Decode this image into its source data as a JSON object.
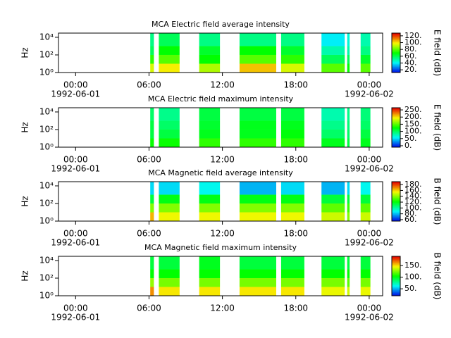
{
  "chart_data": [
    {
      "type": "heatmap",
      "title": "MCA  Electric field average intensity",
      "ylabel": "Hz",
      "colorbar_label": "E field (dB)",
      "colormap": "rainbow",
      "ylog": true,
      "xlim": [
        -1.4,
        25.1
      ],
      "xticks": [
        {
          "value": 0,
          "label": "00:00",
          "date": "1992-06-01"
        },
        {
          "value": 6,
          "label": "06:00"
        },
        {
          "value": 12,
          "label": "12:00"
        },
        {
          "value": 18,
          "label": "18:00"
        },
        {
          "value": 24,
          "label": "00:00",
          "date": "1992-06-02"
        }
      ],
      "ylim": [
        1,
        30000
      ],
      "yticks": [
        {
          "value": 1,
          "label": "10⁰"
        },
        {
          "value": 100,
          "label": "10²"
        },
        {
          "value": 10000,
          "label": "10⁴"
        }
      ],
      "clim": [
        12,
        128
      ],
      "cticks": [
        {
          "value": 20,
          "label": "20."
        },
        {
          "value": 40,
          "label": "40."
        },
        {
          "value": 60,
          "label": "60."
        },
        {
          "value": 80,
          "label": "80."
        },
        {
          "value": 100,
          "label": "100."
        },
        {
          "value": 120,
          "label": "120."
        }
      ],
      "segments": [
        [
          6.1,
          6.4
        ],
        [
          6.8,
          8.5
        ],
        [
          10.1,
          11.8
        ],
        [
          13.4,
          16.4
        ],
        [
          16.8,
          18.7
        ],
        [
          20.1,
          22.0
        ],
        [
          22.2,
          22.4
        ],
        [
          23.3,
          24.1
        ]
      ],
      "y_edges": [
        1,
        10,
        100,
        1000,
        30000
      ],
      "values": [
        [
          95,
          75,
          60,
          55
        ],
        [
          100,
          80,
          70,
          60
        ],
        [
          90,
          70,
          65,
          55
        ],
        [
          105,
          80,
          70,
          55
        ],
        [
          95,
          75,
          65,
          55
        ],
        [
          80,
          60,
          50,
          40
        ],
        [
          70,
          60,
          50,
          45
        ],
        [
          80,
          65,
          55,
          50
        ]
      ]
    },
    {
      "type": "heatmap",
      "title": "MCA  Electric field maximum intensity",
      "ylabel": "Hz",
      "colorbar_label": "E field (dB)",
      "colormap": "rainbow",
      "ylog": true,
      "xlim": [
        -1.4,
        25.1
      ],
      "xticks": [
        {
          "value": 0,
          "label": "00:00",
          "date": "1992-06-01"
        },
        {
          "value": 6,
          "label": "06:00"
        },
        {
          "value": 12,
          "label": "12:00"
        },
        {
          "value": 18,
          "label": "18:00"
        },
        {
          "value": 24,
          "label": "00:00",
          "date": "1992-06-02"
        }
      ],
      "ylim": [
        1,
        30000
      ],
      "yticks": [
        {
          "value": 1,
          "label": "10⁰"
        },
        {
          "value": 100,
          "label": "10²"
        },
        {
          "value": 10000,
          "label": "10⁴"
        }
      ],
      "clim": [
        -10,
        265
      ],
      "cticks": [
        {
          "value": 0,
          "label": "0."
        },
        {
          "value": 50,
          "label": "50."
        },
        {
          "value": 100,
          "label": "100."
        },
        {
          "value": 150,
          "label": "150."
        },
        {
          "value": 200,
          "label": "200."
        },
        {
          "value": 250,
          "label": "250."
        }
      ],
      "segments": [
        [
          6.1,
          6.4
        ],
        [
          6.8,
          8.5
        ],
        [
          10.1,
          11.8
        ],
        [
          13.4,
          16.4
        ],
        [
          16.8,
          18.7
        ],
        [
          20.1,
          22.0
        ],
        [
          22.2,
          22.4
        ],
        [
          23.3,
          24.1
        ]
      ],
      "y_edges": [
        1,
        10,
        100,
        1000,
        30000
      ],
      "values": [
        [
          130,
          110,
          110,
          100
        ],
        [
          130,
          110,
          100,
          90
        ],
        [
          140,
          120,
          115,
          110
        ],
        [
          140,
          120,
          120,
          110
        ],
        [
          140,
          125,
          120,
          110
        ],
        [
          120,
          100,
          90,
          80
        ],
        [
          110,
          100,
          95,
          90
        ],
        [
          120,
          110,
          100,
          95
        ]
      ]
    },
    {
      "type": "heatmap",
      "title": "MCA  Magnetic field average intensity",
      "ylabel": "Hz",
      "colorbar_label": "B field (dB)",
      "colormap": "rainbow",
      "ylog": true,
      "xlim": [
        -1.4,
        25.1
      ],
      "xticks": [
        {
          "value": 0,
          "label": "00:00",
          "date": "1992-06-01"
        },
        {
          "value": 6,
          "label": "06:00"
        },
        {
          "value": 12,
          "label": "12:00"
        },
        {
          "value": 18,
          "label": "18:00"
        },
        {
          "value": 24,
          "label": "00:00",
          "date": "1992-06-02"
        }
      ],
      "ylim": [
        1,
        30000
      ],
      "yticks": [
        {
          "value": 1,
          "label": "10⁰"
        },
        {
          "value": 100,
          "label": "10²"
        },
        {
          "value": 10000,
          "label": "10⁴"
        }
      ],
      "clim": [
        55,
        190
      ],
      "cticks": [
        {
          "value": 60,
          "label": "60."
        },
        {
          "value": 80,
          "label": "80."
        },
        {
          "value": 100,
          "label": "100."
        },
        {
          "value": 120,
          "label": "120."
        },
        {
          "value": 140,
          "label": "140."
        },
        {
          "value": 160,
          "label": "160."
        },
        {
          "value": 180,
          "label": "180."
        }
      ],
      "segments": [
        [
          6.1,
          6.4
        ],
        [
          6.8,
          8.5
        ],
        [
          10.1,
          11.8
        ],
        [
          13.4,
          16.4
        ],
        [
          16.8,
          18.7
        ],
        [
          20.1,
          22.0
        ],
        [
          22.2,
          22.4
        ],
        [
          23.3,
          24.1
        ]
      ],
      "y_edges": [
        1,
        10,
        100,
        1000,
        30000
      ],
      "values": [
        [
          165,
          140,
          115,
          85
        ],
        [
          155,
          140,
          120,
          85
        ],
        [
          155,
          140,
          120,
          90
        ],
        [
          155,
          140,
          120,
          80
        ],
        [
          155,
          140,
          120,
          85
        ],
        [
          150,
          135,
          115,
          80
        ],
        [
          140,
          130,
          115,
          85
        ],
        [
          150,
          135,
          115,
          90
        ]
      ]
    },
    {
      "type": "heatmap",
      "title": "MCA  Magnetic field maximum intensity",
      "ylabel": "Hz",
      "colorbar_label": "B field (dB)",
      "colormap": "rainbow",
      "ylog": true,
      "xlim": [
        -1.4,
        25.1
      ],
      "xticks": [
        {
          "value": 0,
          "label": "00:00",
          "date": "1992-06-01"
        },
        {
          "value": 6,
          "label": "06:00"
        },
        {
          "value": 12,
          "label": "12:00"
        },
        {
          "value": 18,
          "label": "18:00"
        },
        {
          "value": 24,
          "label": "00:00",
          "date": "1992-06-02"
        }
      ],
      "ylim": [
        1,
        30000
      ],
      "yticks": [
        {
          "value": 1,
          "label": "10⁰"
        },
        {
          "value": 100,
          "label": "10²"
        },
        {
          "value": 10000,
          "label": "10⁴"
        }
      ],
      "clim": [
        20,
        190
      ],
      "cticks": [
        {
          "value": 50,
          "label": "50."
        },
        {
          "value": 100,
          "label": "100."
        },
        {
          "value": 150,
          "label": "150."
        }
      ],
      "segments": [
        [
          6.1,
          6.4
        ],
        [
          6.8,
          8.5
        ],
        [
          10.1,
          11.8
        ],
        [
          13.4,
          16.4
        ],
        [
          16.8,
          18.7
        ],
        [
          20.1,
          22.0
        ],
        [
          22.2,
          22.4
        ],
        [
          23.3,
          24.1
        ]
      ],
      "y_edges": [
        1,
        10,
        100,
        1000,
        30000
      ],
      "values": [
        [
          165,
          130,
          105,
          95
        ],
        [
          150,
          125,
          105,
          95
        ],
        [
          150,
          125,
          105,
          100
        ],
        [
          150,
          125,
          105,
          95
        ],
        [
          150,
          125,
          105,
          95
        ],
        [
          145,
          125,
          105,
          95
        ],
        [
          140,
          120,
          105,
          95
        ],
        [
          145,
          125,
          105,
          95
        ]
      ]
    }
  ]
}
